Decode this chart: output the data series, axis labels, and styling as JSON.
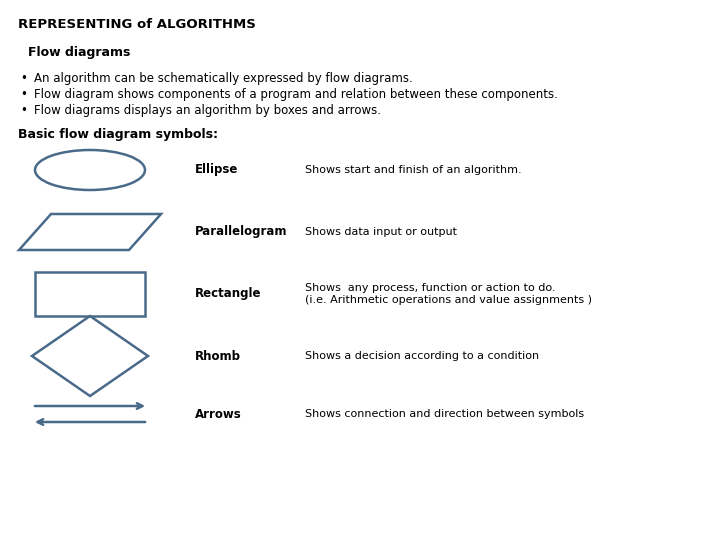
{
  "title": "REPRESENTING of ALGORITHMS",
  "subtitle": "Flow diagrams",
  "bullets": [
    "An algorithm can be schematically expressed by flow diagrams.",
    "Flow diagram shows components of a program and relation between these components.",
    "Flow diagrams displays an algorithm by boxes and arrows."
  ],
  "basic_label": "Basic flow diagram symbols:",
  "symbols": [
    {
      "name": "Ellipse",
      "desc": "Shows start and finish of an algorithm."
    },
    {
      "name": "Parallelogram",
      "desc": "Shows data input or output"
    },
    {
      "name": "Rectangle",
      "desc": "Shows  any process, function or action to do.\n(i.e. Arithmetic operations and value assignments )"
    },
    {
      "name": "Rhomb",
      "desc": "Shows a decision according to a condition"
    },
    {
      "name": "Arrows",
      "desc": "Shows connection and direction between symbols"
    }
  ],
  "shape_color": "#4a6a8a",
  "bg_color": "#ffffff",
  "title_fontsize": 9.5,
  "subtitle_fontsize": 9,
  "bullet_fontsize": 8.5,
  "symbol_name_fontsize": 8.5,
  "symbol_desc_fontsize": 8
}
